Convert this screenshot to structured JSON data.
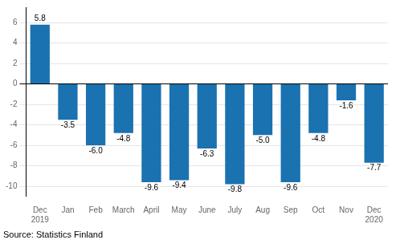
{
  "chart_data": {
    "type": "bar",
    "categories": [
      "Dec\n2019",
      "Jan",
      "Feb",
      "March",
      "April",
      "May",
      "June",
      "July",
      "Aug",
      "Sep",
      "Oct",
      "Nov",
      "Dec\n2020"
    ],
    "values": [
      5.8,
      -3.5,
      -6.0,
      -4.8,
      -9.6,
      -9.4,
      -6.3,
      -9.8,
      -5.0,
      -9.6,
      -4.8,
      -1.6,
      -7.7
    ],
    "value_labels": [
      "5.8",
      "-3.5",
      "-6.0",
      "-4.8",
      "-9.6",
      "-9.4",
      "-6.3",
      "-9.8",
      "-5.0",
      "-9.6",
      "-4.8",
      "-1.6",
      "-7.7"
    ],
    "color": "#1a72b0",
    "ylim": [
      -11,
      7.5
    ],
    "yticks": [
      -10,
      -8,
      -6,
      -4,
      -2,
      0,
      2,
      4,
      6
    ],
    "grid": true,
    "data_labels": true,
    "annotations": [
      "Source: Statistics Finland"
    ]
  }
}
